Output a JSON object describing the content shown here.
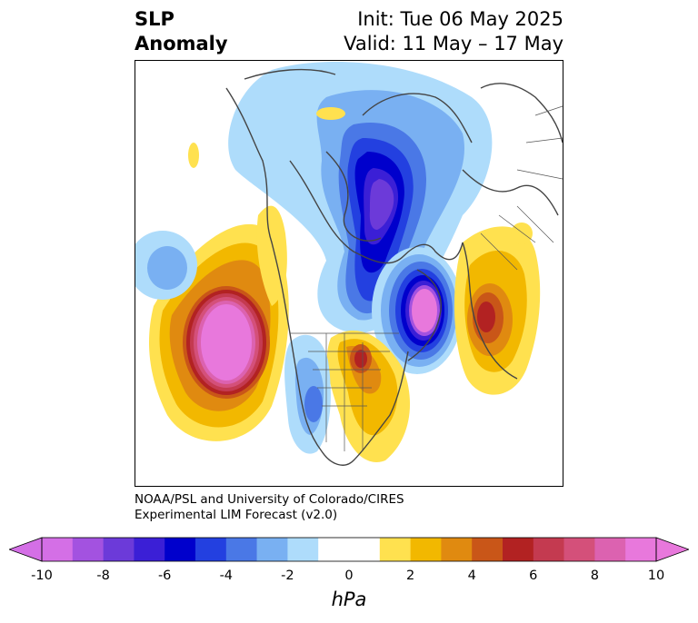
{
  "header": {
    "title_line1": "SLP",
    "title_line2": "Anomaly",
    "init_label": "Init: Tue 06 May 2025",
    "valid_label": "Valid: 11 May – 17 May"
  },
  "credit": {
    "line1": "NOAA/PSL and University of Colorado/CIRES",
    "line2": "Experimental LIM Forecast (v2.0)"
  },
  "colorbar": {
    "unit": "hPa",
    "extend": "both",
    "bins": [
      {
        "from": -10,
        "to": -9,
        "color": "#d46fe6"
      },
      {
        "from": -9,
        "to": -8,
        "color": "#a352e0"
      },
      {
        "from": -8,
        "to": -7,
        "color": "#6c3ad9"
      },
      {
        "from": -7,
        "to": -6,
        "color": "#3b1fd6"
      },
      {
        "from": -6,
        "to": -5,
        "color": "#0000cc"
      },
      {
        "from": -5,
        "to": -4,
        "color": "#2340e0"
      },
      {
        "from": -4,
        "to": -3,
        "color": "#4a78e6"
      },
      {
        "from": -3,
        "to": -2,
        "color": "#79b0f2"
      },
      {
        "from": -2,
        "to": -1,
        "color": "#aedcfb"
      },
      {
        "from": -1,
        "to": 1,
        "color": "#ffffff"
      },
      {
        "from": 1,
        "to": 2,
        "color": "#ffe14f"
      },
      {
        "from": 2,
        "to": 3,
        "color": "#f2b800"
      },
      {
        "from": 3,
        "to": 4,
        "color": "#e08a10"
      },
      {
        "from": 4,
        "to": 5,
        "color": "#c95618"
      },
      {
        "from": 5,
        "to": 6,
        "color": "#b22222"
      },
      {
        "from": 6,
        "to": 7,
        "color": "#c43a50"
      },
      {
        "from": 7,
        "to": 8,
        "color": "#d4507a"
      },
      {
        "from": 8,
        "to": 9,
        "color": "#dc62b0"
      },
      {
        "from": 9,
        "to": 10,
        "color": "#e878dc"
      }
    ],
    "under_color": "#d46fe6",
    "over_color": "#e878dc",
    "ticks": [
      "-10",
      "-8",
      "-6",
      "-4",
      "-2",
      "0",
      "2",
      "4",
      "6",
      "8",
      "10"
    ]
  }
}
